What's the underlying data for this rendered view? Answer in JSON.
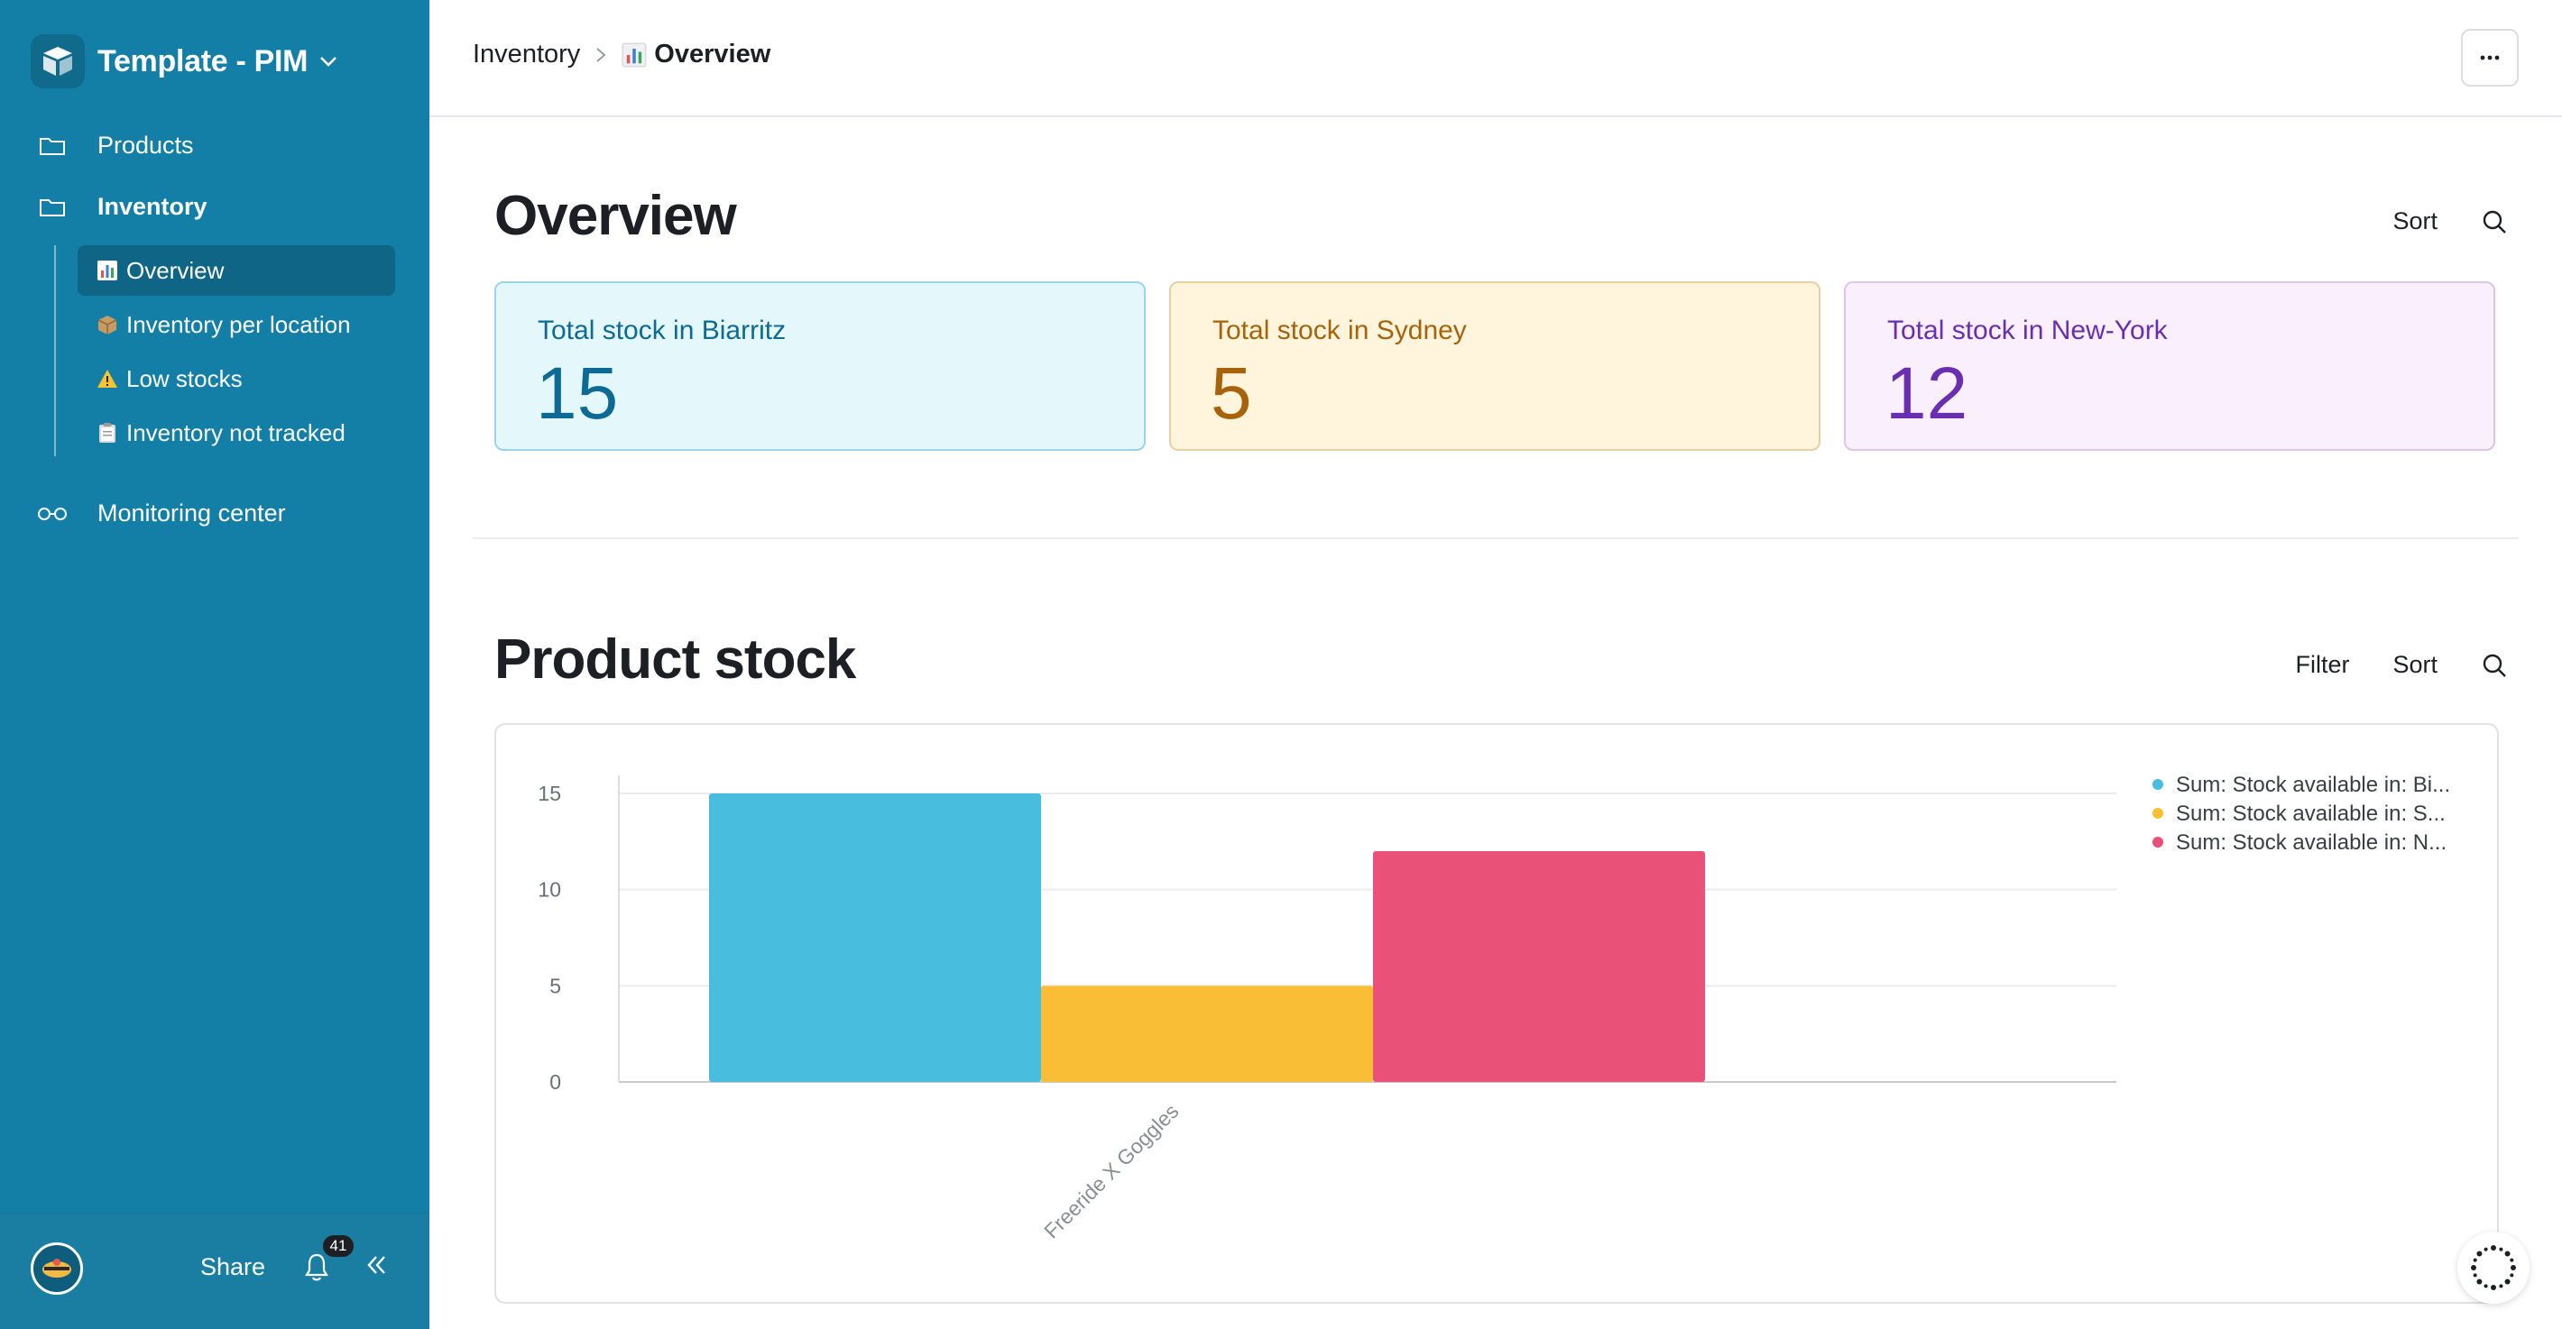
{
  "app": {
    "title": "Template - PIM"
  },
  "sidebar": {
    "items": [
      {
        "label": "Products",
        "icon": "folder-icon"
      },
      {
        "label": "Inventory",
        "icon": "folder-icon"
      },
      {
        "label": "Monitoring center",
        "icon": "glasses-icon"
      }
    ],
    "subitems": [
      {
        "label": "Overview",
        "icon": "bar-chart-emoji",
        "active": true
      },
      {
        "label": "Inventory per location",
        "icon": "package-emoji"
      },
      {
        "label": "Low stocks",
        "icon": "warning-emoji"
      },
      {
        "label": "Inventory not tracked",
        "icon": "clipboard-emoji"
      }
    ],
    "footer": {
      "share_label": "Share",
      "notification_count": "41"
    }
  },
  "breadcrumb": {
    "parent": "Inventory",
    "current": "Overview"
  },
  "overview": {
    "title": "Overview",
    "sort_label": "Sort",
    "cards": [
      {
        "label": "Total stock in Biarritz",
        "value": "15"
      },
      {
        "label": "Total stock in Sydney",
        "value": "5"
      },
      {
        "label": "Total stock in New-York",
        "value": "12"
      }
    ]
  },
  "product_stock": {
    "title": "Product stock",
    "filter_label": "Filter",
    "sort_label": "Sort"
  },
  "colors": {
    "sidebar": "#147fa6",
    "biarritz": "#48bddd",
    "sydney": "#f9be35",
    "newyork": "#ea5178"
  },
  "chart_data": {
    "type": "bar",
    "categories": [
      "Freeride X Goggles"
    ],
    "series": [
      {
        "name": "Sum: Stock available in: Bi...",
        "values": [
          15
        ],
        "color": "#48bddd"
      },
      {
        "name": "Sum: Stock available in: S...",
        "values": [
          5
        ],
        "color": "#f9be35"
      },
      {
        "name": "Sum: Stock available in: N...",
        "values": [
          12
        ],
        "color": "#ea5178"
      }
    ],
    "yticks": [
      0,
      5,
      10,
      15
    ],
    "ylim": [
      0,
      15
    ],
    "grid": true,
    "legend": "top-right"
  }
}
